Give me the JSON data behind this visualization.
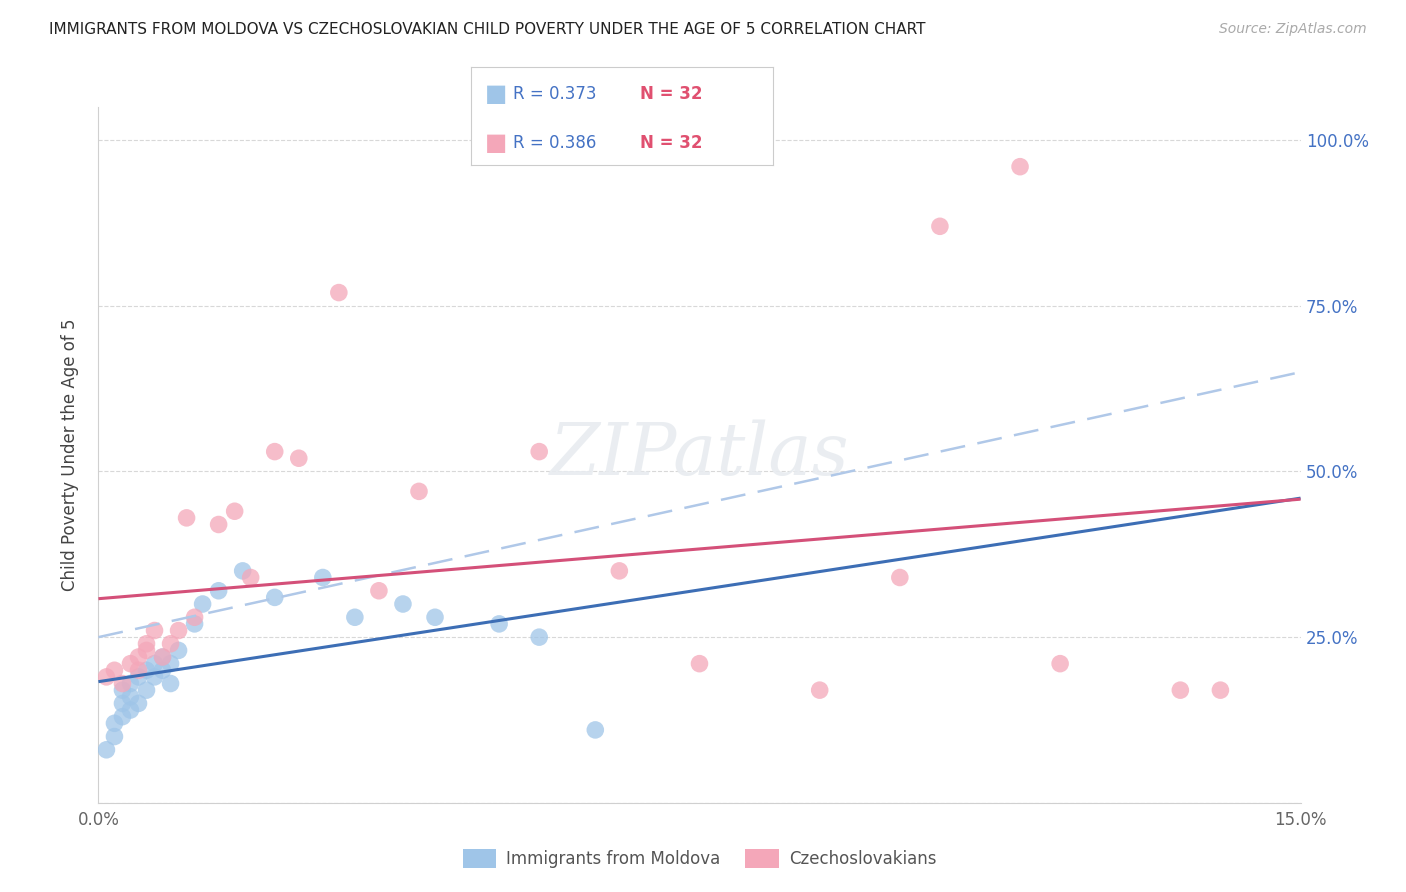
{
  "title": "IMMIGRANTS FROM MOLDOVA VS CZECHOSLOVAKIAN CHILD POVERTY UNDER THE AGE OF 5 CORRELATION CHART",
  "source": "Source: ZipAtlas.com",
  "ylabel": "Child Poverty Under the Age of 5",
  "xmin": 0.0,
  "xmax": 0.15,
  "ymin": 0.0,
  "ymax": 1.05,
  "yticks": [
    0.0,
    0.25,
    0.5,
    0.75,
    1.0
  ],
  "ytick_labels": [
    "",
    "25.0%",
    "50.0%",
    "75.0%",
    "100.0%"
  ],
  "right_ytick_color": "#4472c4",
  "color_blue": "#9fc5e8",
  "color_pink": "#f4a7b9",
  "color_blue_line": "#3d6eb5",
  "color_pink_line": "#d45079",
  "color_dashed": "#b0c8e8",
  "background_color": "#ffffff",
  "legend_r_color": "#4472c4",
  "legend_n_color": "#e05070",
  "moldova_x": [
    0.001,
    0.002,
    0.002,
    0.003,
    0.003,
    0.003,
    0.004,
    0.004,
    0.004,
    0.005,
    0.005,
    0.006,
    0.006,
    0.007,
    0.007,
    0.008,
    0.008,
    0.009,
    0.009,
    0.01,
    0.012,
    0.013,
    0.015,
    0.018,
    0.022,
    0.028,
    0.032,
    0.038,
    0.042,
    0.05,
    0.055,
    0.062
  ],
  "moldova_y": [
    0.08,
    0.1,
    0.12,
    0.13,
    0.15,
    0.17,
    0.14,
    0.16,
    0.18,
    0.15,
    0.19,
    0.17,
    0.2,
    0.19,
    0.21,
    0.2,
    0.22,
    0.18,
    0.21,
    0.23,
    0.27,
    0.3,
    0.32,
    0.35,
    0.31,
    0.34,
    0.28,
    0.3,
    0.28,
    0.27,
    0.25,
    0.11
  ],
  "czech_x": [
    0.001,
    0.002,
    0.003,
    0.004,
    0.005,
    0.005,
    0.006,
    0.006,
    0.007,
    0.008,
    0.009,
    0.01,
    0.011,
    0.012,
    0.015,
    0.017,
    0.019,
    0.022,
    0.025,
    0.03,
    0.035,
    0.04,
    0.055,
    0.065,
    0.075,
    0.09,
    0.1,
    0.105,
    0.115,
    0.12,
    0.135,
    0.14
  ],
  "czech_y": [
    0.19,
    0.2,
    0.18,
    0.21,
    0.22,
    0.2,
    0.24,
    0.23,
    0.26,
    0.22,
    0.24,
    0.26,
    0.43,
    0.28,
    0.42,
    0.44,
    0.34,
    0.53,
    0.52,
    0.77,
    0.32,
    0.47,
    0.53,
    0.35,
    0.21,
    0.17,
    0.34,
    0.87,
    0.96,
    0.21,
    0.17,
    0.17
  ],
  "bottom_legend": [
    "Immigrants from Moldova",
    "Czechoslovakians"
  ]
}
